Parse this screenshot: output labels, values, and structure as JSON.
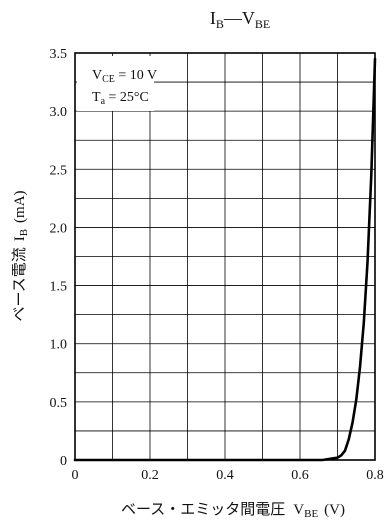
{
  "chart_data": {
    "type": "line",
    "title": {
      "main": "I",
      "sub1": "B",
      "dash": "—",
      "main2": "V",
      "sub2": "BE"
    },
    "xlabel": {
      "jp": "ベース・エミッタ間電圧",
      "sym": "V",
      "sub": "BE",
      "unit": "(V)"
    },
    "ylabel": {
      "jp": "ベース電流",
      "sym": "I",
      "sub": "B",
      "unit": "(mA)"
    },
    "conditions": [
      {
        "sym": "V",
        "sub": "CE",
        "rest": " = 10 V"
      },
      {
        "sym": "T",
        "sub": "a",
        "rest": " = 25°C"
      }
    ],
    "xlim": [
      0,
      0.8
    ],
    "ylim": [
      0,
      3.5
    ],
    "x_minor_step": 0.1,
    "y_minor_step": 0.25,
    "x_ticks": [
      "0",
      "0.2",
      "0.4",
      "0.6",
      "0.8"
    ],
    "y_ticks": [
      "0",
      "0.5",
      "1.0",
      "1.5",
      "2.0",
      "2.5",
      "3.0",
      "3.5"
    ],
    "grid": true,
    "series": [
      {
        "color": "#000000",
        "points": [
          [
            0.0,
            0.0
          ],
          [
            0.6,
            0.0
          ],
          [
            0.66,
            0.0
          ],
          [
            0.7,
            0.02
          ],
          [
            0.71,
            0.04
          ],
          [
            0.72,
            0.08
          ],
          [
            0.73,
            0.18
          ],
          [
            0.74,
            0.32
          ],
          [
            0.75,
            0.52
          ],
          [
            0.76,
            0.8
          ],
          [
            0.77,
            1.18
          ],
          [
            0.78,
            1.7
          ],
          [
            0.79,
            2.45
          ],
          [
            0.8,
            3.45
          ]
        ]
      }
    ]
  }
}
